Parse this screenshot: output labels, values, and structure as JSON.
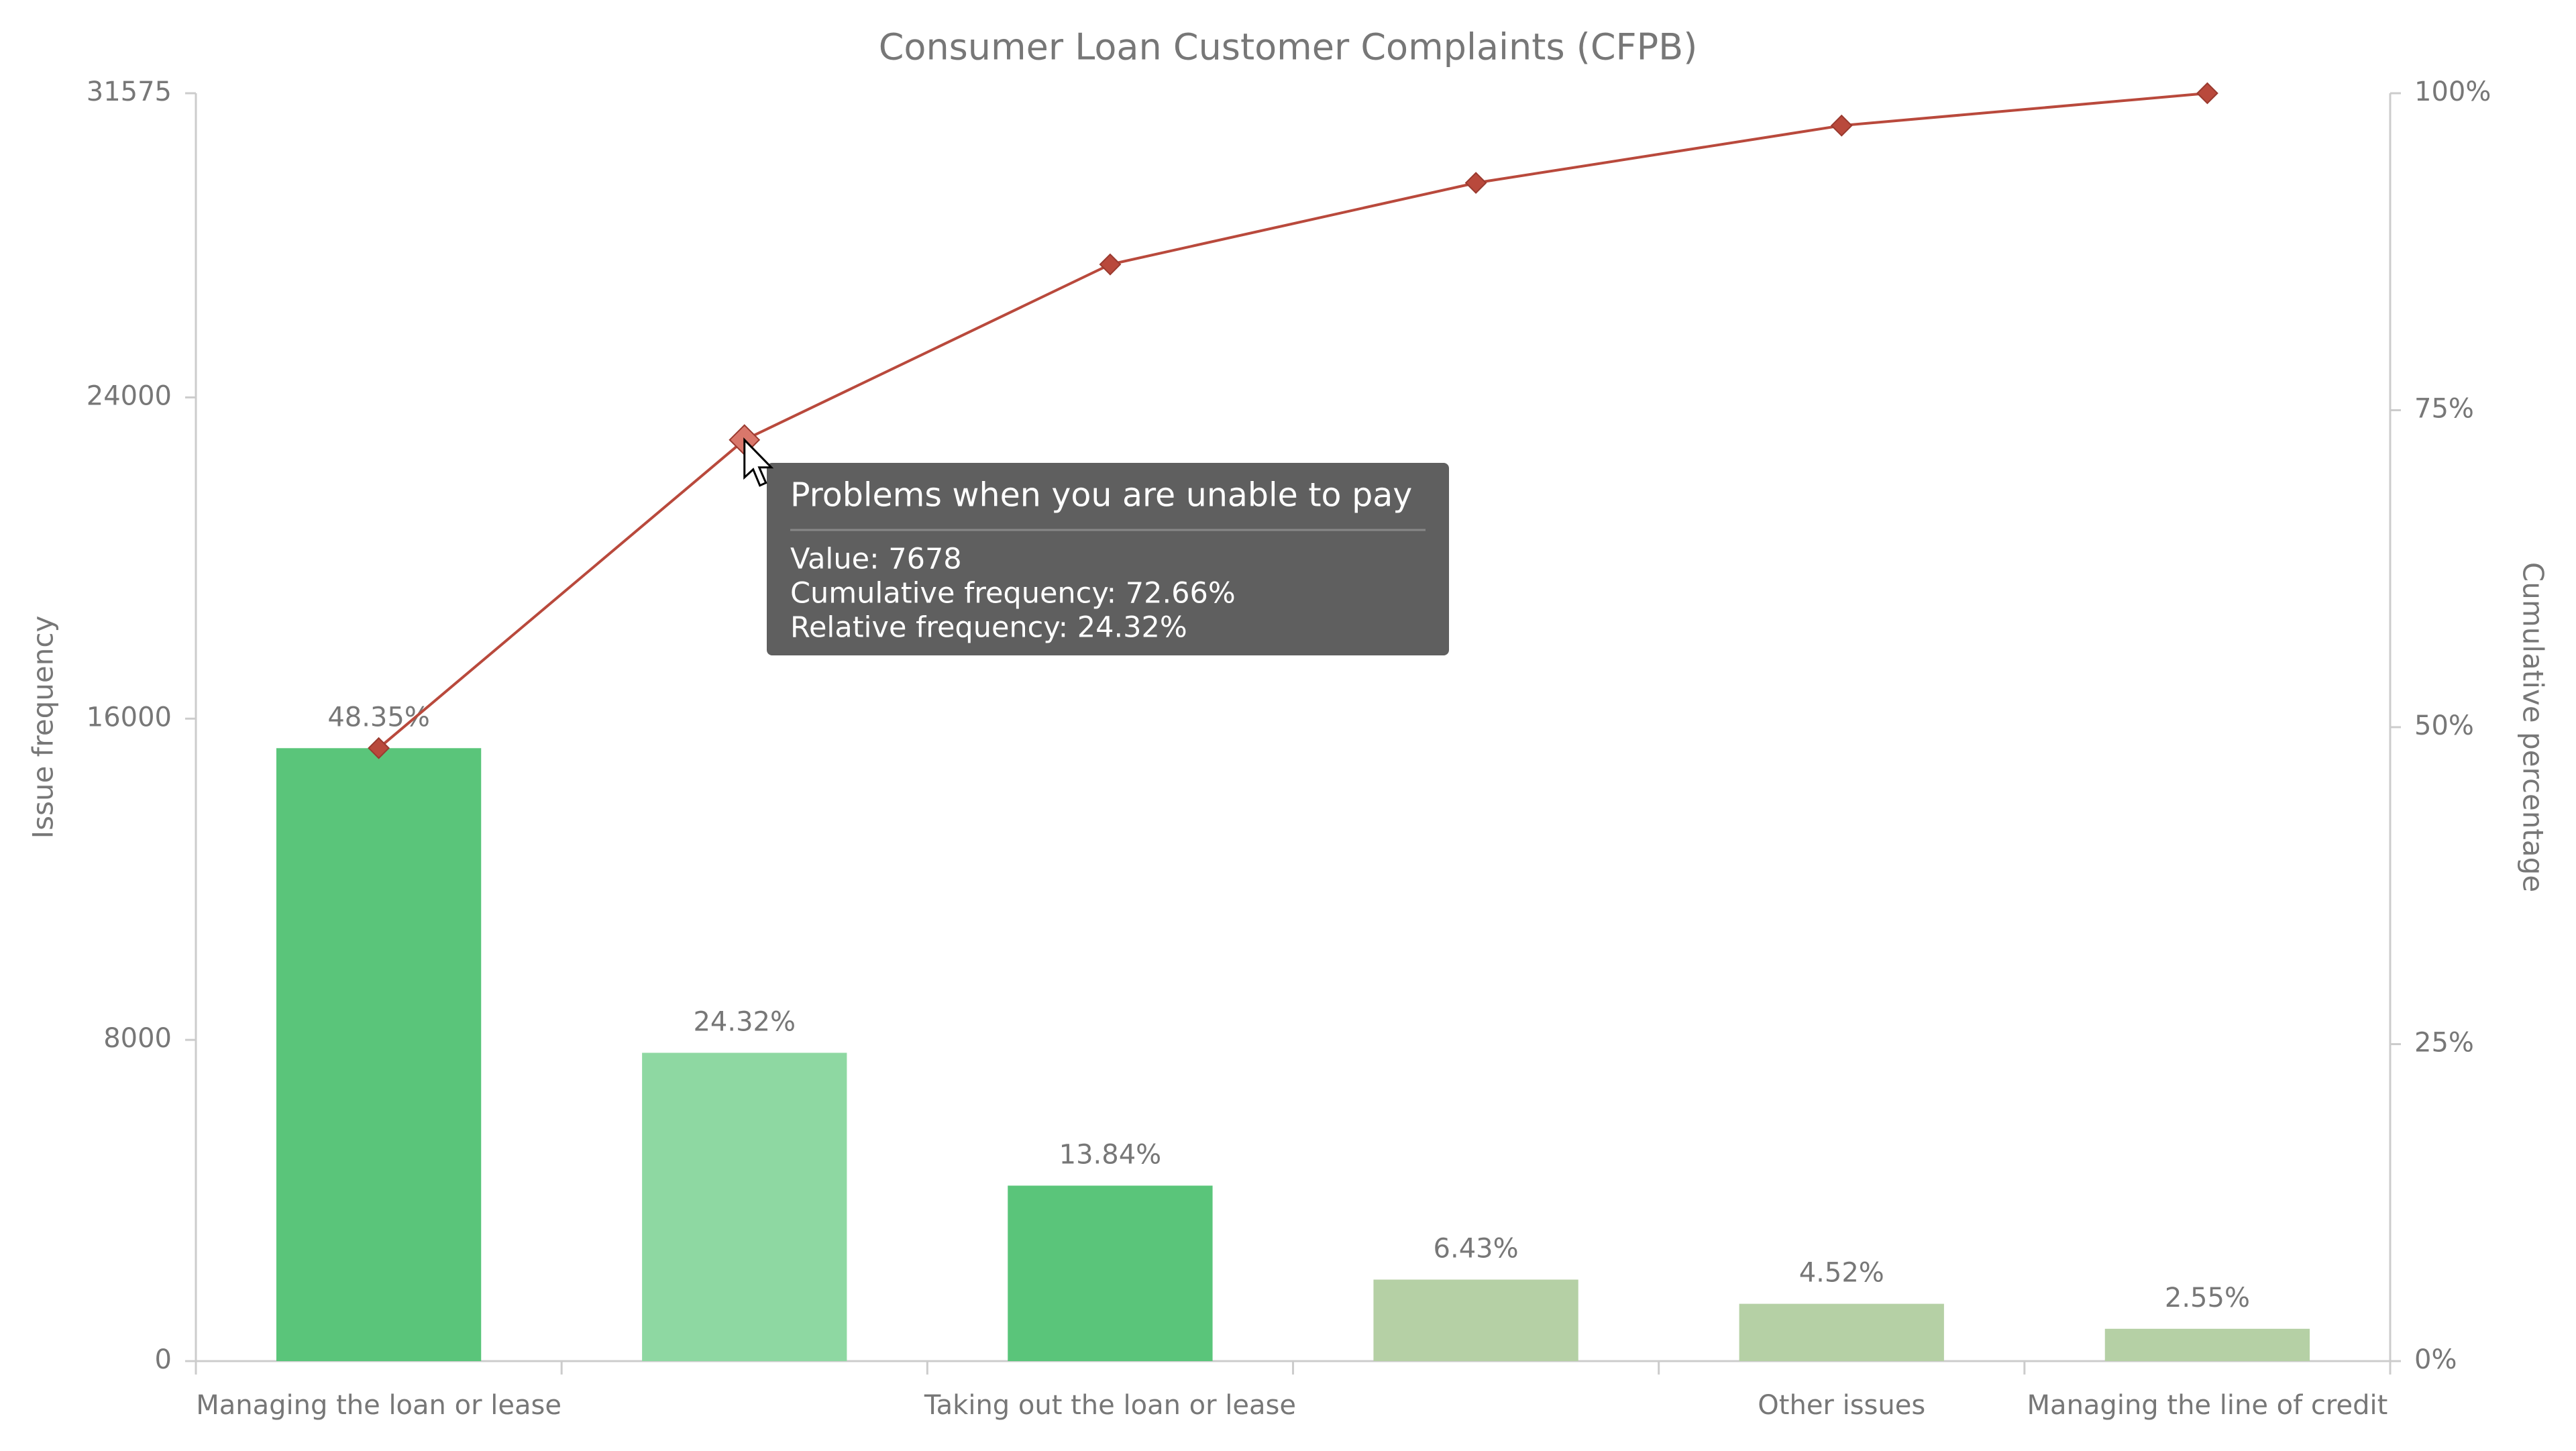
{
  "chart_data": {
    "type": "pareto",
    "title": "Consumer Loan Customer Complaints (CFPB)",
    "y_label": "Issue frequency",
    "y2_label": "Cumulative percentage",
    "categories": [
      "Managing the loan or lease",
      null,
      "Taking out the loan or lease",
      null,
      "Other issues",
      "Managing the line of credit"
    ],
    "series": [
      {
        "name": "Issue frequency",
        "type": "bar",
        "colors": [
          "#5ac57a",
          "#8ed8a2",
          "#5ac57a",
          "#b5d0a5",
          "#b5d0a5",
          "#b5d0a5"
        ],
        "values": [
          15265,
          7678,
          4370,
          2030,
          1427,
          805
        ],
        "data_labels": [
          "48.35%",
          "24.32%",
          "13.84%",
          "6.43%",
          "4.52%",
          "2.55%"
        ]
      },
      {
        "name": "Cumulative percentage",
        "type": "line",
        "axis": "y2",
        "color": "#b9493c",
        "values": [
          48.35,
          72.66,
          86.5,
          92.93,
          97.45,
          100
        ]
      }
    ],
    "ylim": [
      0,
      31575
    ],
    "yticks": [
      0,
      8000,
      16000,
      24000,
      31575
    ],
    "y2lim": [
      0,
      100
    ],
    "y2ticks": [
      {
        "value": 0,
        "label": "0%"
      },
      {
        "value": 25,
        "label": "25%"
      },
      {
        "value": 50,
        "label": "50%"
      },
      {
        "value": 75,
        "label": "75%"
      },
      {
        "value": 100,
        "label": "100%"
      }
    ],
    "tooltip": {
      "title": "Problems when you are unable to pay",
      "lines": [
        "Value: 7678",
        "Cumulative frequency: 72.66%",
        "Relative frequency: 24.32%"
      ]
    }
  }
}
